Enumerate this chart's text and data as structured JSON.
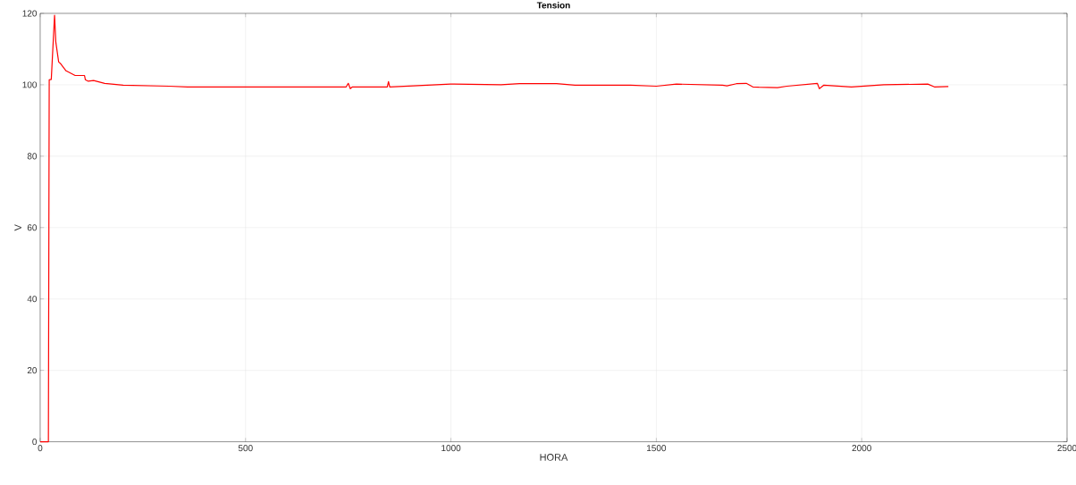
{
  "chart_data": {
    "type": "line",
    "title": "Tension",
    "xlabel": "HORA",
    "ylabel": "V",
    "xlim": [
      0,
      2500
    ],
    "ylim": [
      0,
      120
    ],
    "xticks": [
      0,
      500,
      1000,
      1500,
      2000,
      2500
    ],
    "yticks": [
      0,
      20,
      40,
      60,
      80,
      100,
      120
    ],
    "grid": true,
    "marker": "none",
    "line_style": "solid",
    "series": [
      {
        "color": "#ff0000",
        "x": [
          0,
          20,
          22,
          27,
          35,
          38,
          45,
          49,
          63,
          85,
          108,
          110,
          117,
          130,
          157,
          202,
          314,
          359,
          539,
          745,
          750,
          755,
          760,
          845,
          848,
          851,
          999,
          1122,
          1167,
          1257,
          1302,
          1437,
          1500,
          1549,
          1661,
          1672,
          1695,
          1719,
          1735,
          1750,
          1795,
          1818,
          1892,
          1897,
          1908,
          1975,
          2054,
          2161,
          2177,
          2211
        ],
        "values": [
          0,
          0,
          101.4,
          101.5,
          119.5,
          112,
          106.4,
          106,
          103.9,
          102.6,
          102.6,
          101.4,
          101,
          101.2,
          100.4,
          99.9,
          99.6,
          99.4,
          99.4,
          99.4,
          100.4,
          98.9,
          99.4,
          99.4,
          100.9,
          99.4,
          100.2,
          100,
          100.3,
          100.3,
          99.9,
          99.9,
          99.6,
          100.2,
          99.9,
          99.7,
          100.3,
          100.4,
          99.4,
          99.3,
          99.2,
          99.6,
          100.4,
          98.9,
          99.9,
          99.4,
          100,
          100.2,
          99.4,
          99.5
        ]
      }
    ]
  }
}
